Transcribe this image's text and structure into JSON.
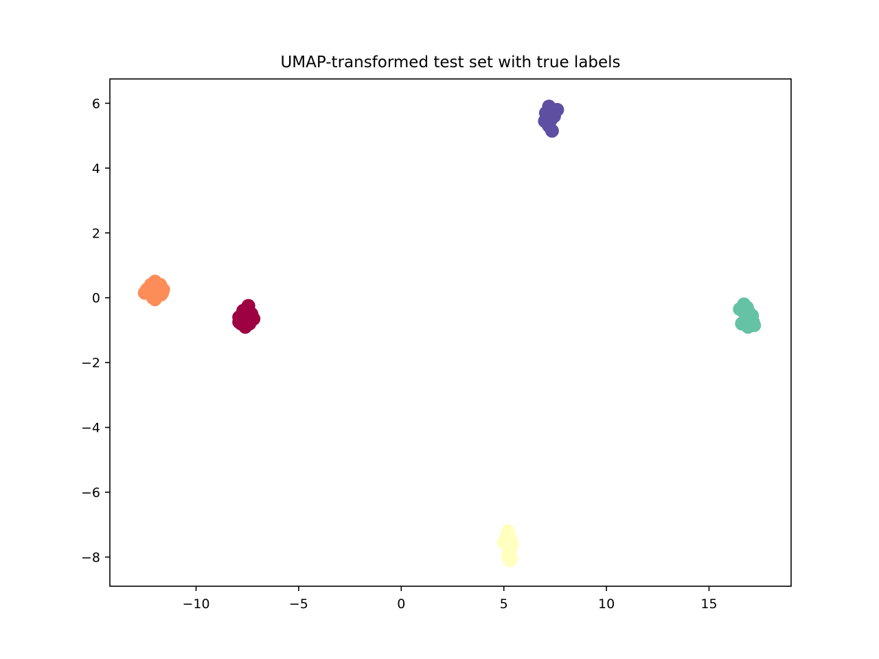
{
  "chart_data": {
    "type": "scatter",
    "title": "UMAP-transformed test set with true labels",
    "xlabel": "",
    "ylabel": "",
    "xlim": [
      -14.2,
      19.0
    ],
    "ylim": [
      -8.9,
      6.75
    ],
    "xticks": [
      -10,
      -5,
      0,
      5,
      10,
      15
    ],
    "xtick_labels": [
      "−10",
      "−5",
      "0",
      "5",
      "10",
      "15"
    ],
    "yticks": [
      -8,
      -6,
      -4,
      -2,
      0,
      2,
      4,
      6
    ],
    "ytick_labels": [
      "−8",
      "−6",
      "−4",
      "−2",
      "0",
      "2",
      "4",
      "6"
    ],
    "grid": false,
    "legend": "none",
    "series": [
      {
        "color": "#9e0142",
        "points": [
          [
            -7.5,
            -0.3
          ],
          [
            -7.7,
            -0.4
          ],
          [
            -7.3,
            -0.5
          ],
          [
            -7.9,
            -0.6
          ],
          [
            -7.6,
            -0.6
          ],
          [
            -7.2,
            -0.65
          ],
          [
            -7.8,
            -0.8
          ],
          [
            -7.4,
            -0.8
          ],
          [
            -7.6,
            -0.9
          ],
          [
            -7.3,
            -0.7
          ],
          [
            -7.7,
            -0.5
          ],
          [
            -7.5,
            -0.7
          ],
          [
            -7.9,
            -0.75
          ],
          [
            -7.4,
            -0.45
          ],
          [
            -7.8,
            -0.55
          ],
          [
            -7.45,
            -0.25
          ],
          [
            -7.65,
            -0.85
          ]
        ]
      },
      {
        "color": "#fc8d59",
        "points": [
          [
            -12.0,
            0.5
          ],
          [
            -12.3,
            0.2
          ],
          [
            -11.8,
            0.3
          ],
          [
            -12.1,
            0.0
          ],
          [
            -11.7,
            0.1
          ],
          [
            -12.5,
            0.15
          ],
          [
            -11.6,
            0.25
          ],
          [
            -12.2,
            0.4
          ],
          [
            -11.9,
            0.2
          ],
          [
            -12.0,
            -0.05
          ],
          [
            -11.75,
            0.4
          ],
          [
            -12.4,
            0.25
          ],
          [
            -11.65,
            0.15
          ]
        ]
      },
      {
        "color": "#ffffbf",
        "points": [
          [
            5.2,
            -7.2
          ],
          [
            5.3,
            -7.4
          ],
          [
            5.1,
            -7.6
          ],
          [
            5.3,
            -7.8
          ],
          [
            5.2,
            -8.0
          ],
          [
            5.3,
            -8.1
          ],
          [
            5.2,
            -7.5
          ],
          [
            5.0,
            -7.55
          ],
          [
            5.4,
            -7.6
          ],
          [
            5.25,
            -7.9
          ],
          [
            5.15,
            -7.3
          ],
          [
            5.35,
            -8.05
          ],
          [
            5.2,
            -7.7
          ]
        ]
      },
      {
        "color": "#66c2a5",
        "points": [
          [
            16.7,
            -0.2
          ],
          [
            16.9,
            -0.4
          ],
          [
            16.5,
            -0.35
          ],
          [
            17.0,
            -0.6
          ],
          [
            16.8,
            -0.7
          ],
          [
            17.2,
            -0.85
          ],
          [
            16.9,
            -0.9
          ],
          [
            16.6,
            -0.8
          ],
          [
            17.1,
            -0.55
          ],
          [
            16.75,
            -0.5
          ],
          [
            17.15,
            -0.75
          ],
          [
            16.85,
            -0.3
          ]
        ]
      },
      {
        "color": "#5e4fa2",
        "points": [
          [
            7.2,
            5.9
          ],
          [
            7.3,
            5.7
          ],
          [
            7.1,
            5.6
          ],
          [
            7.6,
            5.8
          ],
          [
            7.0,
            5.45
          ],
          [
            7.3,
            5.5
          ],
          [
            7.2,
            5.3
          ],
          [
            7.35,
            5.15
          ],
          [
            7.4,
            5.7
          ],
          [
            7.45,
            5.6
          ],
          [
            7.05,
            5.7
          ],
          [
            7.25,
            5.85
          ],
          [
            7.15,
            5.35
          ]
        ]
      }
    ]
  }
}
